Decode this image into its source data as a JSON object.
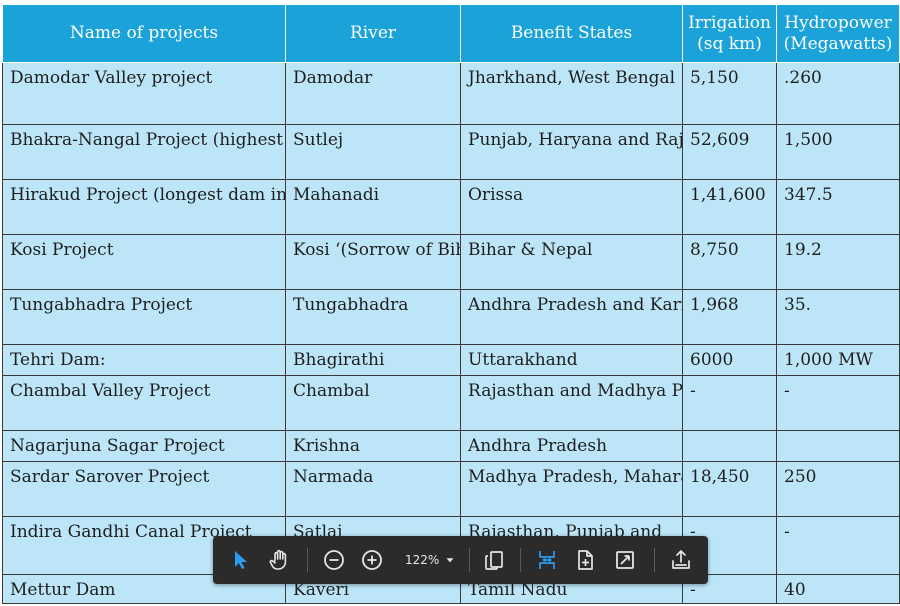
{
  "table": {
    "headers": [
      "Name of projects",
      "River",
      "Benefit States",
      "Irrigation\n(sq km)",
      "Hydropower\n(Megawatts)"
    ],
    "rows": [
      [
        "Damodar Valley project",
        "Damodar",
        "Jharkhand, West Bengal",
        "5,150",
        ".260"
      ],
      [
        "Bhakra-Nangal Project (highest\ngravity dam in the world)",
        "Sutlej",
        "Punjab, Haryana and\nRajasthan",
        "52,609",
        "1,500"
      ],
      [
        "Hirakud Project\n(longest dam in the world)",
        "Mahanadi",
        "Orissa",
        "1,41,600",
        "347.5"
      ],
      [
        "Kosi Project",
        "Kosi\n‘(Sorrow of Bihar’.)",
        "Bihar & Nepal",
        "8,750",
        "19.2"
      ],
      [
        "Tungabhadra Project",
        "Tungabhadra",
        "Andhra Pradesh and\nKarnataka",
        "1,968",
        "35."
      ],
      [
        "Tehri Dam:",
        "Bhagirathi",
        "Uttarakhand",
        "6000",
        "1,000 MW"
      ],
      [
        "Chambal Valley Project",
        "Chambal",
        "Rajasthan and\nMadhya Pradesh",
        "-",
        "-"
      ],
      [
        "Nagarjuna Sagar Project",
        "Krishna",
        "Andhra Pradesh",
        "",
        ""
      ],
      [
        "Sardar Sarover Project",
        "Narmada",
        "Madhya Pradesh,\nMaharashtra, Rajasthan",
        "18,450",
        "250"
      ],
      [
        "Indira Gandhi Canal Project",
        "Satlaj",
        "Rajasthan, Punjab and",
        "-",
        "-"
      ],
      [
        "Mettur Dam",
        "Kaveri",
        "Tamil Nadu",
        "-",
        "40"
      ]
    ]
  },
  "toolbar": {
    "zoom_value": "122%",
    "icons": [
      "select-arrow-icon",
      "hand-tool-icon",
      "zoom-out-icon",
      "zoom-in-icon",
      "zoom-dropdown-icon",
      "copy-pages-icon",
      "fit-width-icon",
      "fit-page-icon",
      "fullscreen-icon",
      "share-upload-icon"
    ],
    "accent_color": "#2b9cf2"
  }
}
